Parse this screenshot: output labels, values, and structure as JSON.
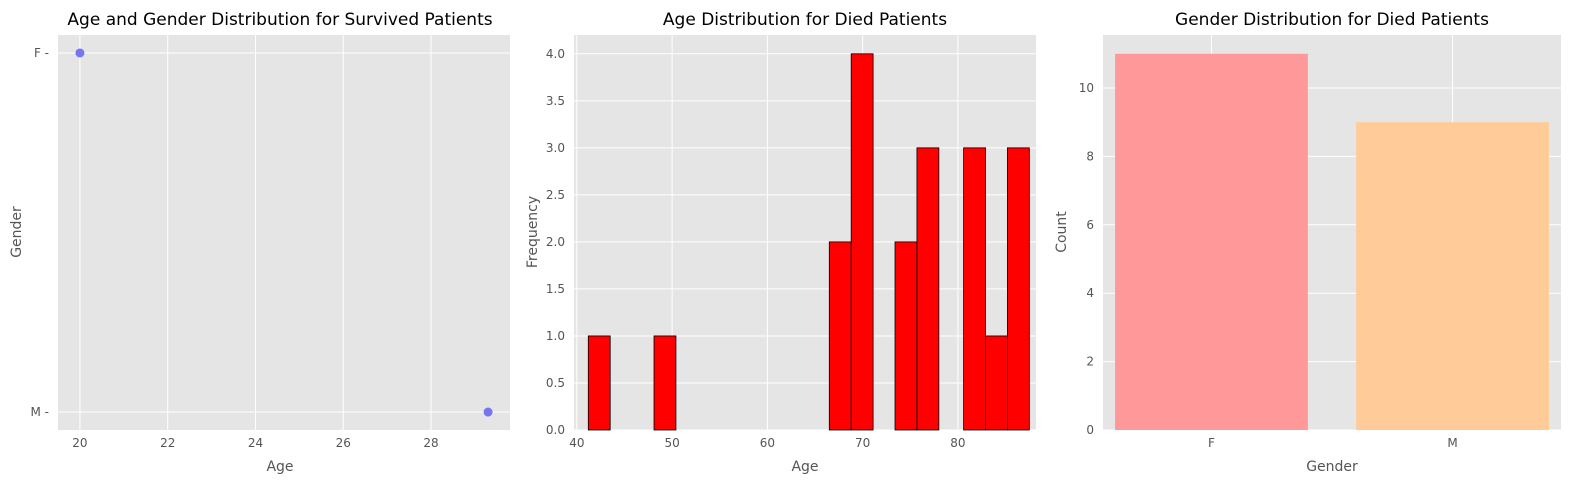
{
  "chart_data": [
    {
      "type": "scatter",
      "title": "Age and Gender Distribution for Survived Patients",
      "xlabel": "Age",
      "ylabel": "Gender",
      "xlim": [
        19.5,
        29.8
      ],
      "x_ticks": [
        20,
        22,
        24,
        26,
        28
      ],
      "y_categories": [
        "M",
        "F"
      ],
      "points": [
        {
          "x": 20,
          "y": "F"
        },
        {
          "x": 29.3,
          "y": "M"
        }
      ],
      "color": "#6f6ff0",
      "grid": true
    },
    {
      "type": "bar",
      "title": "Age Distribution for Died Patients",
      "xlabel": "Age",
      "ylabel": "Frequency",
      "xlim": [
        39.7,
        88.2
      ],
      "ylim": [
        0,
        4.2
      ],
      "x_ticks": [
        40,
        50,
        60,
        70,
        80
      ],
      "y_ticks": [
        0.0,
        0.5,
        1.0,
        1.5,
        2.0,
        2.5,
        3.0,
        3.5,
        4.0
      ],
      "bins": [
        {
          "start": 41.2,
          "end": 43.5,
          "count": 1
        },
        {
          "start": 48.1,
          "end": 50.4,
          "count": 1
        },
        {
          "start": 66.5,
          "end": 68.8,
          "count": 2
        },
        {
          "start": 68.8,
          "end": 71.1,
          "count": 4
        },
        {
          "start": 73.4,
          "end": 75.7,
          "count": 2
        },
        {
          "start": 75.7,
          "end": 78.0,
          "count": 3
        },
        {
          "start": 80.6,
          "end": 82.9,
          "count": 3
        },
        {
          "start": 82.9,
          "end": 85.2,
          "count": 1
        },
        {
          "start": 85.2,
          "end": 87.5,
          "count": 3
        }
      ],
      "color": "#ff0000",
      "edge_color": "#000000",
      "grid": true
    },
    {
      "type": "bar",
      "title": "Gender Distribution for Died Patients",
      "xlabel": "Gender",
      "ylabel": "Count",
      "categories": [
        "F",
        "M"
      ],
      "values": [
        11,
        9
      ],
      "ylim": [
        0,
        11.55
      ],
      "y_ticks": [
        0,
        2,
        4,
        6,
        8,
        10
      ],
      "colors": [
        "#ff9999",
        "#ffcc99"
      ],
      "grid": true
    }
  ]
}
